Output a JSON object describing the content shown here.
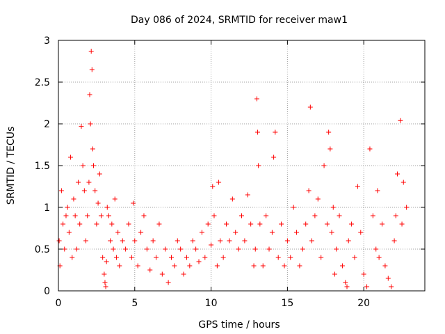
{
  "chart_data": {
    "type": "scatter",
    "title": "Day 086 of 2024, SRMTID for receiver maw1",
    "xlabel": "GPS time / hours",
    "ylabel": "SRMTID / TECUs",
    "xlim": [
      0,
      24
    ],
    "ylim": [
      0,
      3
    ],
    "xticks": [
      0,
      5,
      10,
      15,
      20
    ],
    "xtick_labels": [
      "0",
      "5",
      "10",
      "15",
      "20"
    ],
    "yticks": [
      0,
      0.5,
      1,
      1.5,
      2,
      2.5,
      3
    ],
    "ytick_labels": [
      "0",
      "0.5",
      "1",
      "1.5",
      "2",
      "2.5",
      "3"
    ],
    "grid": true,
    "marker": "plus",
    "color": "#ff0000",
    "series": [
      {
        "name": "SRMTID",
        "x": [
          0.05,
          0.1,
          0.2,
          0.3,
          0.4,
          0.5,
          0.6,
          0.7,
          0.8,
          0.9,
          1.0,
          1.1,
          1.2,
          1.3,
          1.4,
          1.5,
          1.6,
          1.7,
          1.8,
          1.9,
          2.0,
          2.05,
          2.1,
          2.15,
          2.2,
          2.25,
          2.3,
          2.4,
          2.5,
          2.6,
          2.7,
          2.8,
          2.9,
          3.0,
          3.05,
          3.1,
          3.15,
          3.2,
          3.3,
          3.4,
          3.5,
          3.6,
          3.7,
          3.8,
          3.9,
          4.0,
          4.2,
          4.4,
          4.6,
          4.8,
          4.9,
          5.0,
          5.2,
          5.4,
          5.6,
          5.8,
          6.0,
          6.2,
          6.4,
          6.6,
          6.8,
          7.0,
          7.2,
          7.4,
          7.6,
          7.8,
          8.0,
          8.2,
          8.4,
          8.6,
          8.8,
          9.0,
          9.2,
          9.4,
          9.6,
          9.8,
          10.0,
          10.1,
          10.2,
          10.4,
          10.5,
          10.6,
          10.8,
          11.0,
          11.2,
          11.4,
          11.6,
          11.8,
          12.0,
          12.2,
          12.4,
          12.6,
          12.8,
          12.9,
          13.0,
          13.05,
          13.1,
          13.2,
          13.4,
          13.6,
          13.8,
          14.0,
          14.1,
          14.2,
          14.4,
          14.6,
          14.8,
          15.0,
          15.2,
          15.4,
          15.6,
          15.8,
          16.0,
          16.2,
          16.4,
          16.5,
          16.6,
          16.8,
          17.0,
          17.2,
          17.4,
          17.6,
          17.7,
          17.8,
          17.9,
          18.0,
          18.1,
          18.2,
          18.4,
          18.6,
          18.8,
          18.9,
          19.0,
          19.2,
          19.4,
          19.6,
          19.8,
          20.0,
          20.2,
          20.4,
          20.6,
          20.8,
          20.9,
          21.0,
          21.2,
          21.4,
          21.6,
          21.8,
          22.0,
          22.1,
          22.2,
          22.4,
          22.5,
          22.6,
          22.8
        ],
        "y": [
          0.6,
          0.3,
          1.2,
          0.8,
          0.5,
          0.9,
          1.0,
          0.7,
          1.6,
          0.4,
          1.1,
          0.9,
          0.5,
          1.3,
          0.8,
          1.97,
          1.5,
          1.2,
          0.6,
          0.9,
          1.3,
          2.35,
          2.0,
          2.87,
          2.65,
          1.7,
          1.5,
          1.2,
          0.8,
          1.05,
          1.4,
          0.9,
          0.4,
          0.2,
          0.1,
          0.05,
          0.35,
          1.0,
          0.9,
          0.6,
          0.8,
          0.5,
          1.1,
          0.4,
          0.7,
          0.3,
          0.6,
          0.5,
          0.8,
          0.4,
          1.05,
          0.6,
          0.3,
          0.7,
          0.9,
          0.5,
          0.25,
          0.6,
          0.4,
          0.8,
          0.2,
          0.5,
          0.1,
          0.4,
          0.3,
          0.6,
          0.5,
          0.2,
          0.4,
          0.3,
          0.6,
          0.5,
          0.35,
          0.7,
          0.4,
          0.8,
          0.55,
          1.25,
          0.9,
          0.3,
          1.3,
          0.6,
          0.4,
          0.8,
          0.6,
          1.1,
          0.7,
          0.5,
          0.9,
          0.6,
          1.15,
          0.8,
          0.3,
          0.5,
          2.3,
          1.9,
          1.5,
          0.8,
          0.3,
          0.9,
          0.5,
          0.7,
          1.6,
          1.9,
          0.4,
          0.8,
          0.3,
          0.6,
          0.4,
          1.0,
          0.7,
          0.3,
          0.5,
          0.8,
          1.2,
          2.2,
          0.6,
          0.9,
          1.1,
          0.4,
          1.5,
          0.8,
          1.9,
          1.7,
          0.7,
          1.0,
          0.2,
          0.5,
          0.9,
          0.3,
          0.1,
          0.05,
          0.6,
          0.8,
          0.4,
          1.25,
          0.7,
          0.2,
          0.05,
          1.7,
          0.9,
          0.5,
          1.2,
          0.4,
          0.8,
          0.3,
          0.15,
          0.05,
          0.6,
          0.9,
          1.4,
          2.04,
          0.8,
          1.3,
          1.0
        ]
      }
    ]
  }
}
